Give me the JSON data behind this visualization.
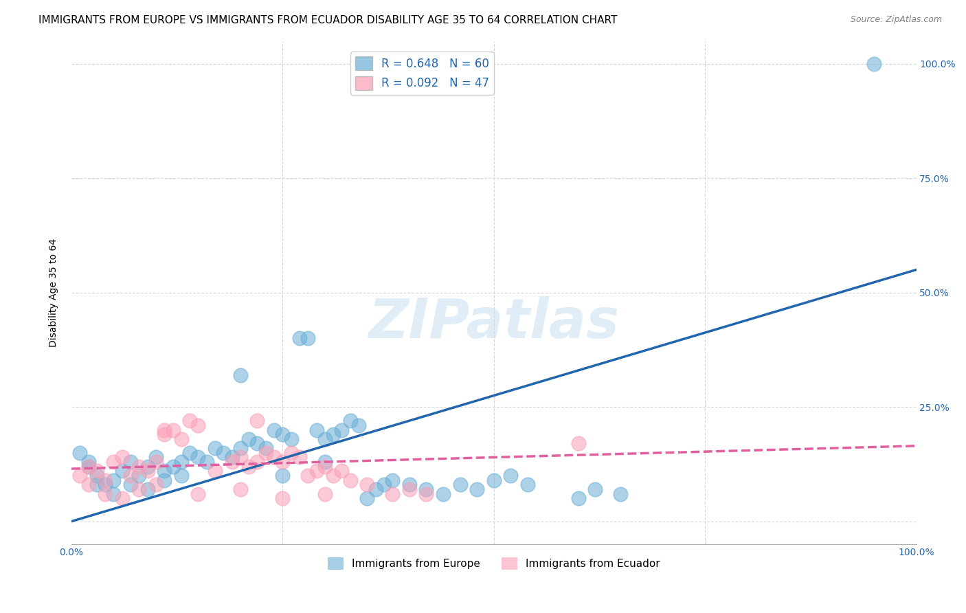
{
  "title": "IMMIGRANTS FROM EUROPE VS IMMIGRANTS FROM ECUADOR DISABILITY AGE 35 TO 64 CORRELATION CHART",
  "source": "Source: ZipAtlas.com",
  "ylabel": "Disability Age 35 to 64",
  "xlim": [
    0,
    1.0
  ],
  "ylim": [
    -0.05,
    1.05
  ],
  "xticks": [
    0.0,
    0.25,
    0.5,
    0.75,
    1.0
  ],
  "xticklabels": [
    "0.0%",
    "",
    "",
    "",
    "100.0%"
  ],
  "ytick_positions": [
    0.0,
    0.25,
    0.5,
    0.75,
    1.0
  ],
  "ytick_labels": [
    "",
    "25.0%",
    "50.0%",
    "75.0%",
    "100.0%"
  ],
  "europe_color": "#6baed6",
  "ecuador_color": "#fa9fb5",
  "europe_line_color": "#2166ac",
  "ecuador_line_color": "#e05fa0",
  "europe_R": 0.648,
  "europe_N": 60,
  "ecuador_R": 0.092,
  "ecuador_N": 47,
  "legend_europe": "Immigrants from Europe",
  "legend_ecuador": "Immigrants from Ecuador",
  "europe_scatter_x": [
    0.02,
    0.03,
    0.04,
    0.05,
    0.06,
    0.07,
    0.08,
    0.09,
    0.1,
    0.11,
    0.12,
    0.13,
    0.14,
    0.15,
    0.16,
    0.17,
    0.18,
    0.19,
    0.2,
    0.21,
    0.22,
    0.23,
    0.24,
    0.25,
    0.26,
    0.27,
    0.28,
    0.29,
    0.3,
    0.31,
    0.32,
    0.33,
    0.34,
    0.35,
    0.36,
    0.37,
    0.38,
    0.4,
    0.42,
    0.44,
    0.46,
    0.48,
    0.5,
    0.52,
    0.54,
    0.6,
    0.62,
    0.65,
    0.01,
    0.02,
    0.03,
    0.05,
    0.07,
    0.09,
    0.11,
    0.13,
    0.2,
    0.25,
    0.3,
    0.95
  ],
  "europe_scatter_y": [
    0.12,
    0.1,
    0.08,
    0.09,
    0.11,
    0.13,
    0.1,
    0.12,
    0.14,
    0.11,
    0.12,
    0.13,
    0.15,
    0.14,
    0.13,
    0.16,
    0.15,
    0.14,
    0.16,
    0.18,
    0.17,
    0.16,
    0.2,
    0.19,
    0.18,
    0.4,
    0.4,
    0.2,
    0.18,
    0.19,
    0.2,
    0.22,
    0.21,
    0.05,
    0.07,
    0.08,
    0.09,
    0.08,
    0.07,
    0.06,
    0.08,
    0.07,
    0.09,
    0.1,
    0.08,
    0.05,
    0.07,
    0.06,
    0.15,
    0.13,
    0.08,
    0.06,
    0.08,
    0.07,
    0.09,
    0.1,
    0.32,
    0.1,
    0.13,
    1.0
  ],
  "ecuador_scatter_x": [
    0.01,
    0.02,
    0.03,
    0.04,
    0.05,
    0.06,
    0.07,
    0.08,
    0.09,
    0.1,
    0.11,
    0.12,
    0.13,
    0.14,
    0.15,
    0.11,
    0.17,
    0.22,
    0.19,
    0.2,
    0.21,
    0.22,
    0.23,
    0.24,
    0.25,
    0.26,
    0.27,
    0.28,
    0.29,
    0.3,
    0.31,
    0.32,
    0.33,
    0.35,
    0.38,
    0.4,
    0.42,
    0.6,
    0.02,
    0.04,
    0.06,
    0.08,
    0.1,
    0.15,
    0.2,
    0.25,
    0.3
  ],
  "ecuador_scatter_y": [
    0.1,
    0.12,
    0.11,
    0.09,
    0.13,
    0.14,
    0.1,
    0.12,
    0.11,
    0.13,
    0.19,
    0.2,
    0.18,
    0.22,
    0.21,
    0.2,
    0.11,
    0.22,
    0.13,
    0.14,
    0.12,
    0.13,
    0.15,
    0.14,
    0.13,
    0.15,
    0.14,
    0.1,
    0.11,
    0.12,
    0.1,
    0.11,
    0.09,
    0.08,
    0.06,
    0.07,
    0.06,
    0.17,
    0.08,
    0.06,
    0.05,
    0.07,
    0.08,
    0.06,
    0.07,
    0.05,
    0.06
  ],
  "europe_line_x": [
    0.0,
    1.0
  ],
  "europe_line_y": [
    0.0,
    0.55
  ],
  "ecuador_line_x": [
    0.0,
    1.0
  ],
  "ecuador_line_y": [
    0.115,
    0.165
  ],
  "background_color": "#ffffff",
  "grid_color": "#cccccc",
  "title_fontsize": 11,
  "axis_label_fontsize": 10,
  "tick_fontsize": 10,
  "legend_fontsize": 12
}
